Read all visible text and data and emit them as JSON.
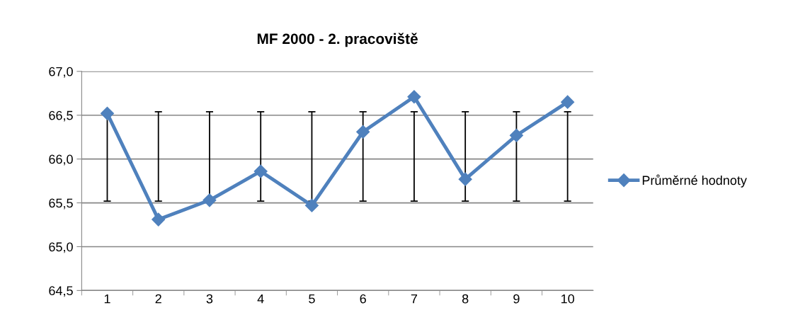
{
  "chart_data": {
    "type": "line",
    "title": "MF 2000 - 2. pracoviště",
    "categories": [
      "1",
      "2",
      "3",
      "4",
      "5",
      "6",
      "7",
      "8",
      "9",
      "10"
    ],
    "series": [
      {
        "name": "Průměrné hodnoty",
        "color": "#4f81bd",
        "values": [
          66.52,
          65.31,
          65.53,
          65.86,
          65.47,
          66.31,
          66.71,
          65.77,
          66.27,
          66.65
        ],
        "errors": [
          [
            65.52,
            66.52
          ],
          [
            65.52,
            66.54
          ],
          [
            65.52,
            66.54
          ],
          [
            65.52,
            66.54
          ],
          [
            65.52,
            66.54
          ],
          [
            65.52,
            66.54
          ],
          [
            65.52,
            66.54
          ],
          [
            65.52,
            66.54
          ],
          [
            65.52,
            66.54
          ],
          [
            65.52,
            66.54
          ]
        ]
      }
    ],
    "ylim": [
      64.5,
      67.0
    ],
    "yticks": [
      {
        "value": 64.5,
        "label": "64,5"
      },
      {
        "value": 65.0,
        "label": "65,0"
      },
      {
        "value": 65.5,
        "label": "65,5"
      },
      {
        "value": 66.0,
        "label": "66,0"
      },
      {
        "value": 66.5,
        "label": "66,5"
      },
      {
        "value": 67.0,
        "label": "67,0"
      }
    ],
    "grid": "y",
    "legend": "right",
    "marker": "diamond",
    "line_style": "solid"
  }
}
